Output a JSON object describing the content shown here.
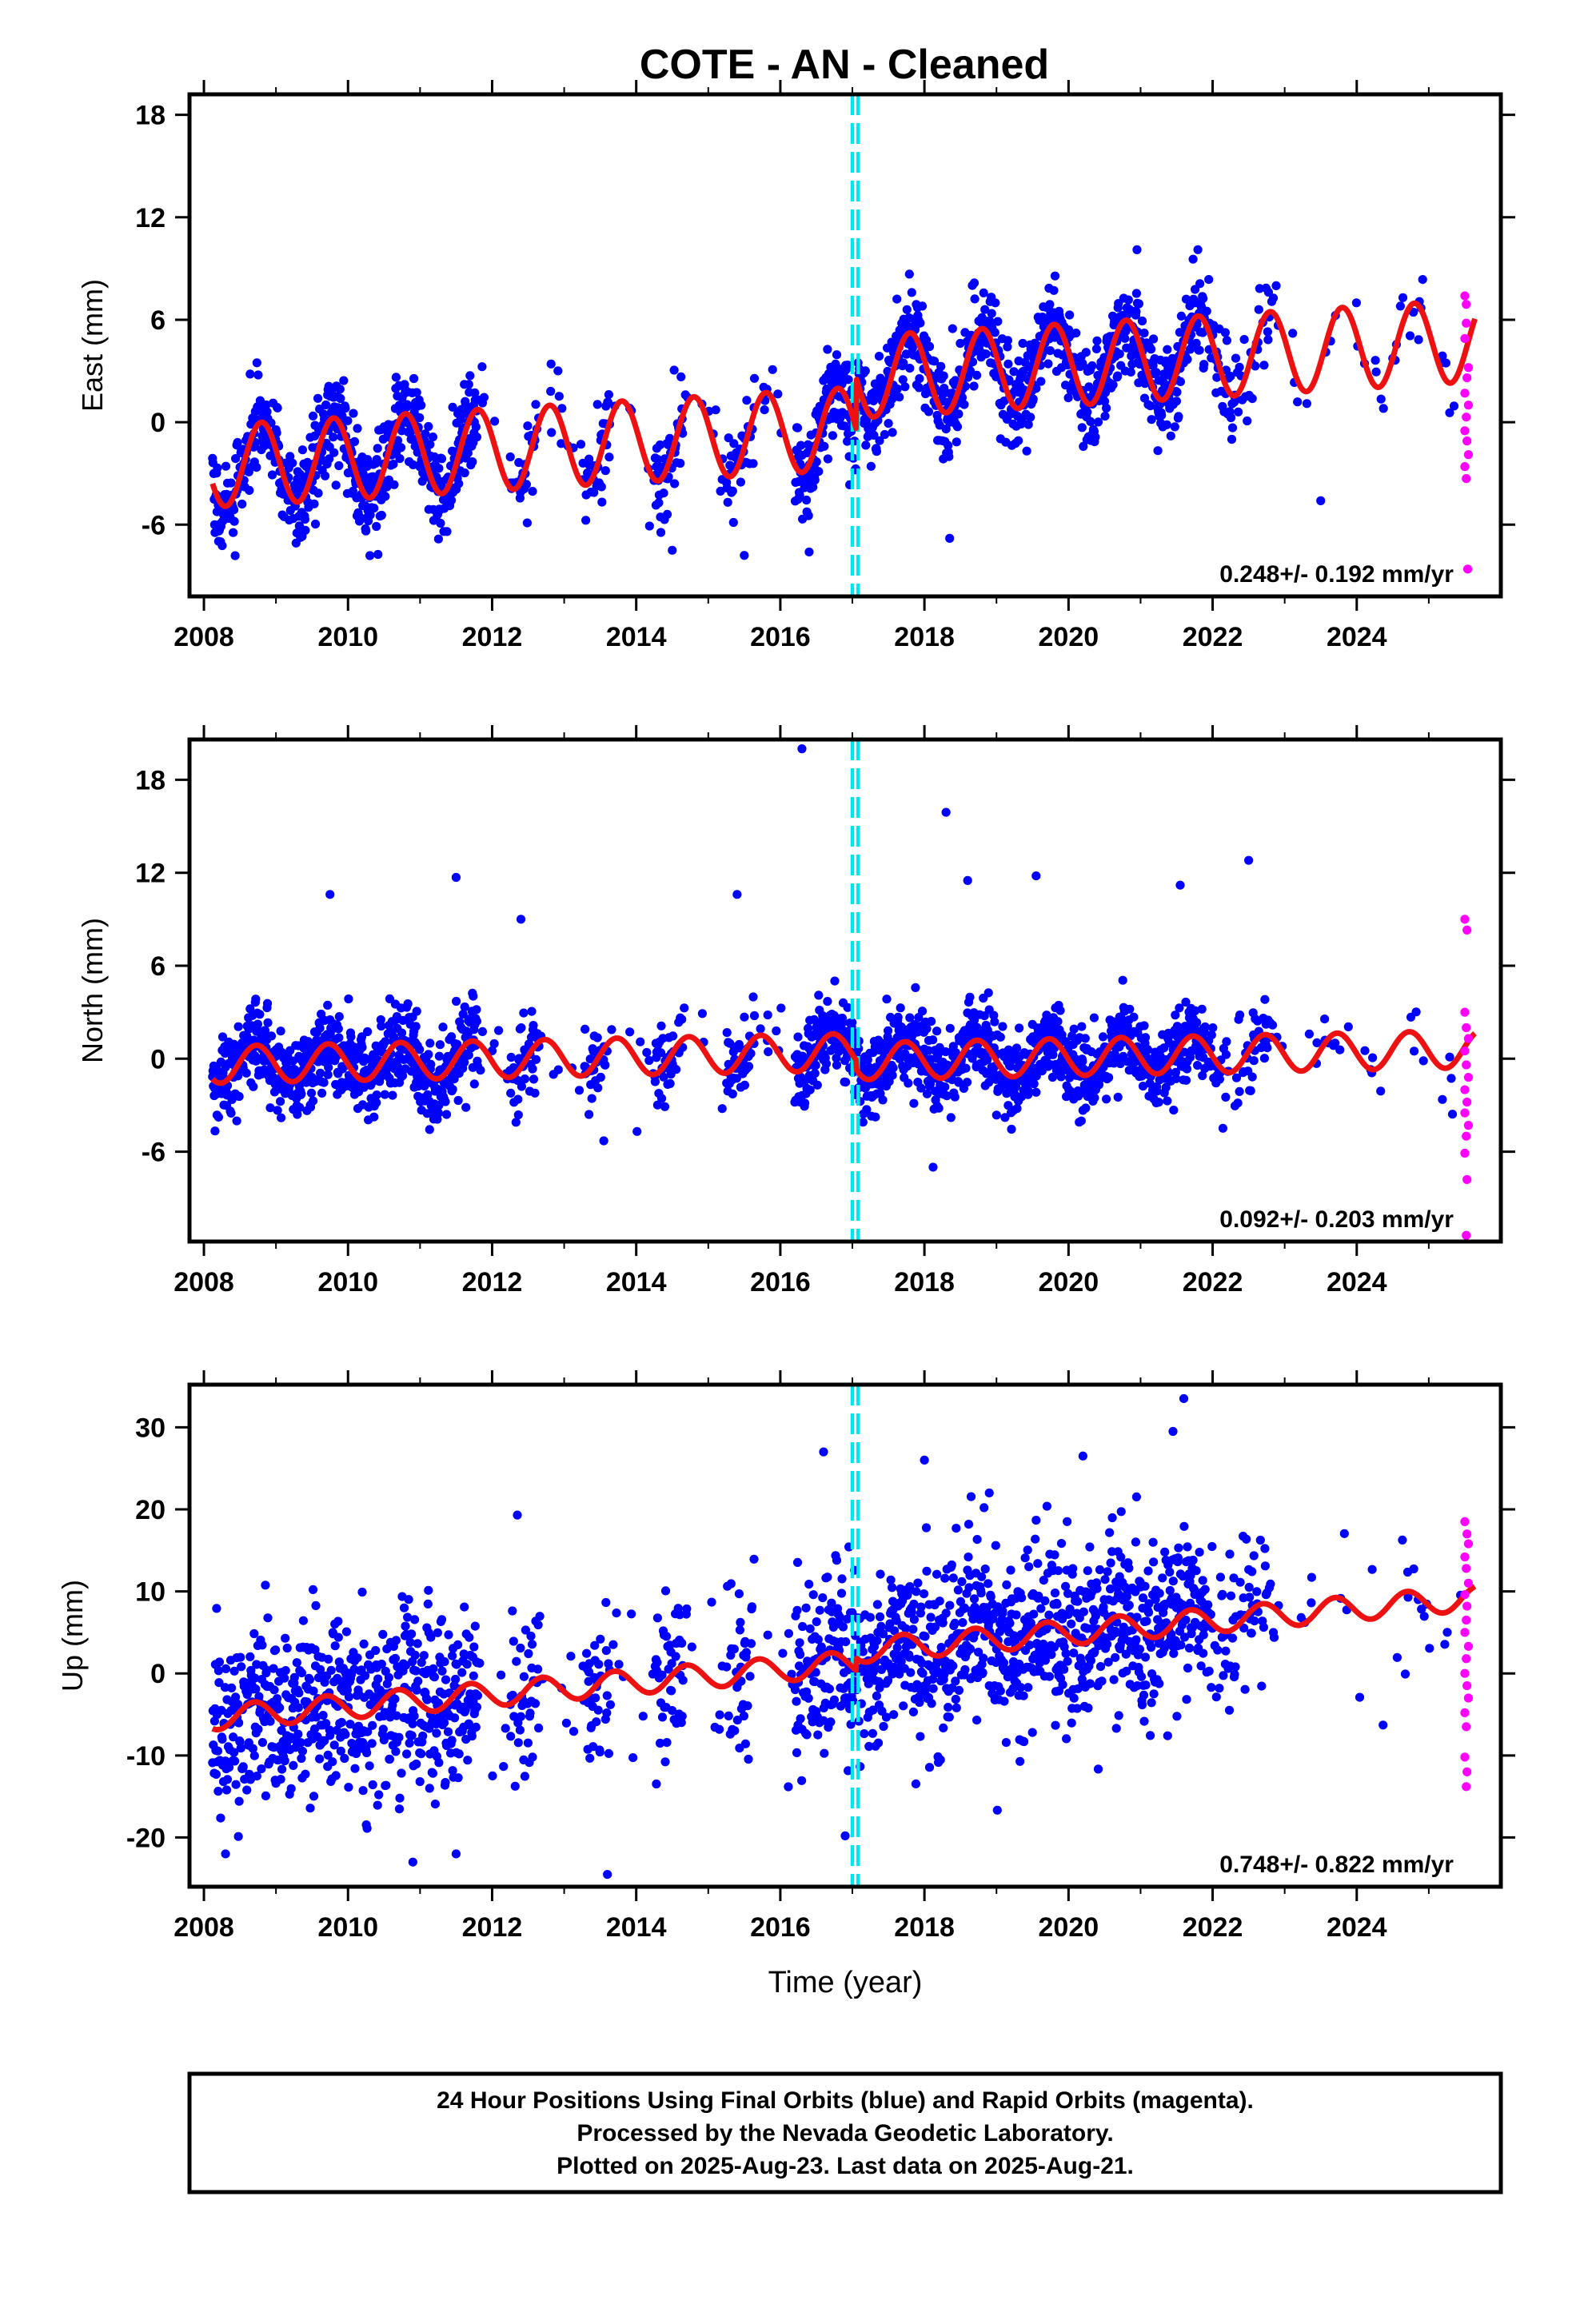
{
  "colors": {
    "final_orbits": "#0000ff",
    "rapid_orbits": "#ff00ff",
    "model_fit": "#ee1111",
    "equipment_change": "#00e5ee",
    "frame": "#000000"
  },
  "chart_data": {
    "type": "scatter",
    "title": "COTE  - AN - Cleaned",
    "xlabel": "Time (year)",
    "xlim": [
      2007.8,
      2026.0
    ],
    "x_ticks": [
      2008,
      2010,
      2012,
      2014,
      2016,
      2018,
      2020,
      2022,
      2024
    ],
    "x_tick_labels": [
      "2008",
      "2010",
      "2012",
      "2014",
      "2016",
      "2018",
      "2020",
      "2022",
      "2024"
    ],
    "steps_year": [
      2017.0,
      2017.08
    ],
    "data_start": 2008.12,
    "data_end": 2025.64,
    "panels": [
      {
        "id": "east",
        "ylabel": "East (mm)",
        "ylim": [
          -10.2,
          19.2
        ],
        "y_ticks": [
          -6,
          0,
          6,
          12,
          18
        ],
        "y_tick_labels": [
          "-6",
          "0",
          "6",
          "12",
          "18"
        ],
        "rate_label": "0.248+/- 0.192 mm/yr",
        "model": {
          "offset": -2.6,
          "trend": 0.248,
          "amp": 2.4,
          "phase": 0.55,
          "step": 3.0,
          "step_year": 2017.05
        },
        "scatter_sd": 1.35,
        "outliers": [
          [
            2020.95,
            10.1
          ],
          [
            2018.35,
            -6.8
          ],
          [
            2014.5,
            -7.5
          ],
          [
            2015.5,
            -7.8
          ],
          [
            2023.5,
            -4.6
          ],
          [
            2016.4,
            -7.6
          ]
        ],
        "rapid_points": [
          [
            2025.5,
            7.4
          ],
          [
            2025.52,
            6.9
          ],
          [
            2025.52,
            5.8
          ],
          [
            2025.5,
            4.9
          ],
          [
            2025.55,
            3.2
          ],
          [
            2025.53,
            2.6
          ],
          [
            2025.5,
            1.7
          ],
          [
            2025.55,
            1.0
          ],
          [
            2025.52,
            0.3
          ],
          [
            2025.5,
            -0.5
          ],
          [
            2025.53,
            -1.1
          ],
          [
            2025.55,
            -1.9
          ],
          [
            2025.5,
            -2.6
          ],
          [
            2025.52,
            -3.3
          ],
          [
            2025.54,
            -8.6
          ]
        ]
      },
      {
        "id": "north",
        "ylabel": "North (mm)",
        "ylim": [
          -11.8,
          20.6
        ],
        "y_ticks": [
          -6,
          0,
          6,
          12,
          18
        ],
        "y_tick_labels": [
          "-6",
          "0",
          "6",
          "12",
          "18"
        ],
        "rate_label": "0.092+/- 0.203 mm/yr",
        "model": {
          "offset": -0.4,
          "trend": 0.092,
          "amp": 1.2,
          "phase": 0.48,
          "step": -0.6,
          "step_year": 2017.05
        },
        "scatter_sd": 1.35,
        "outliers": [
          [
            2016.3,
            20.0
          ],
          [
            2018.3,
            15.9
          ],
          [
            2011.5,
            11.7
          ],
          [
            2009.75,
            10.6
          ],
          [
            2015.4,
            10.6
          ],
          [
            2018.6,
            11.5
          ],
          [
            2019.55,
            11.8
          ],
          [
            2021.55,
            11.2
          ],
          [
            2022.5,
            12.8
          ],
          [
            2012.4,
            9.0
          ],
          [
            2018.12,
            -7.0
          ],
          [
            2013.55,
            -5.3
          ]
        ],
        "rapid_points": [
          [
            2025.5,
            9.0
          ],
          [
            2025.53,
            8.3
          ],
          [
            2025.5,
            3.0
          ],
          [
            2025.52,
            2.0
          ],
          [
            2025.55,
            1.3
          ],
          [
            2025.5,
            0.5
          ],
          [
            2025.52,
            -0.4
          ],
          [
            2025.55,
            -1.2
          ],
          [
            2025.5,
            -2.0
          ],
          [
            2025.53,
            -2.8
          ],
          [
            2025.5,
            -3.5
          ],
          [
            2025.55,
            -4.3
          ],
          [
            2025.52,
            -5.0
          ],
          [
            2025.5,
            -6.1
          ],
          [
            2025.53,
            -7.8
          ],
          [
            2025.52,
            -11.4
          ]
        ]
      },
      {
        "id": "up",
        "ylabel": "Up (mm)",
        "ylim": [
          -26.0,
          35.2
        ],
        "y_ticks": [
          -20,
          -10,
          0,
          10,
          20,
          30
        ],
        "y_tick_labels": [
          "-20",
          "-10",
          "0",
          "10",
          "20",
          "30"
        ],
        "rate_label": "0.748+/- 0.822 mm/yr",
        "model": {
          "offset": -5.5,
          "trend": 0.748,
          "amp": 1.5,
          "phase": 0.45,
          "step": 1.5,
          "step_year": 2017.05
        },
        "scatter_sd": 5.2,
        "outliers": [
          [
            2021.6,
            33.5
          ],
          [
            2021.45,
            29.5
          ],
          [
            2016.6,
            27.0
          ],
          [
            2018.0,
            26.0
          ],
          [
            2020.2,
            26.5
          ],
          [
            2013.6,
            -24.5
          ],
          [
            2008.3,
            -22.0
          ],
          [
            2011.5,
            -22.0
          ],
          [
            2010.9,
            -23.0
          ],
          [
            2016.9,
            -19.8
          ],
          [
            2012.35,
            19.3
          ],
          [
            2018.9,
            22.0
          ]
        ],
        "rapid_points": [
          [
            2025.5,
            18.5
          ],
          [
            2025.53,
            17.0
          ],
          [
            2025.55,
            15.8
          ],
          [
            2025.5,
            14.2
          ],
          [
            2025.52,
            12.8
          ],
          [
            2025.55,
            11.0
          ],
          [
            2025.5,
            9.6
          ],
          [
            2025.53,
            8.2
          ],
          [
            2025.52,
            6.5
          ],
          [
            2025.5,
            5.0
          ],
          [
            2025.55,
            3.3
          ],
          [
            2025.52,
            1.8
          ],
          [
            2025.5,
            0.0
          ],
          [
            2025.53,
            -1.5
          ],
          [
            2025.55,
            -3.0
          ],
          [
            2025.5,
            -4.8
          ],
          [
            2025.52,
            -6.5
          ],
          [
            2025.5,
            -10.2
          ],
          [
            2025.53,
            -12.0
          ],
          [
            2025.52,
            -13.8
          ]
        ]
      }
    ]
  },
  "caption": {
    "line1": "24 Hour Positions Using Final Orbits (blue) and Rapid Orbits (magenta).",
    "line2": "Processed by the Nevada Geodetic Laboratory.",
    "line3": "Plotted on 2025-Aug-23. Last data on 2025-Aug-21."
  }
}
